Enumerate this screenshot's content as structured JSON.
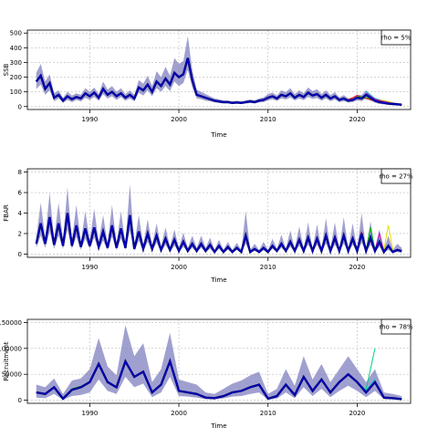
{
  "chart_data": [
    {
      "type": "line",
      "ylabel": "SSB",
      "xlabel": "Time",
      "xlim": [
        1983,
        2026
      ],
      "ylim": [
        0,
        500
      ],
      "x_ticks": [
        1990,
        2000,
        2010,
        2020
      ],
      "x_tick_labels": [
        "1990",
        "2000",
        "2010",
        "2020"
      ],
      "y_ticks": [
        0,
        100,
        200,
        300,
        400,
        500
      ],
      "y_tick_labels": [
        "0",
        "100",
        "200",
        "300",
        "400",
        "500"
      ],
      "grid": true,
      "legend": {
        "text": "rho = 5%",
        "placement": "top-right"
      },
      "band_color": "#8080c0",
      "line_color": "#0000cc",
      "est": {
        "x": [
          1984,
          1984.5,
          1985,
          1985.5,
          1986,
          1986.5,
          1987,
          1987.5,
          1988,
          1988.5,
          1989,
          1989.5,
          1990,
          1990.5,
          1991,
          1991.5,
          1992,
          1992.5,
          1993,
          1993.5,
          1994,
          1994.5,
          1995,
          1995.5,
          1996,
          1996.5,
          1997,
          1997.5,
          1998,
          1998.5,
          1999,
          1999.5,
          2000,
          2000.5,
          2001,
          2001.5,
          2002,
          2002.5,
          2003,
          2003.5,
          2004,
          2004.5,
          2005,
          2005.5,
          2006,
          2006.5,
          2007,
          2007.5,
          2008,
          2008.5,
          2009,
          2009.5,
          2010,
          2010.5,
          2011,
          2011.5,
          2012,
          2012.5,
          2013,
          2013.5,
          2014,
          2014.5,
          2015,
          2015.5,
          2016,
          2016.5,
          2017,
          2017.5,
          2018,
          2018.5,
          2019,
          2019.5,
          2020,
          2020.5,
          2021,
          2021.5,
          2022,
          2022.5,
          2023,
          2023.5,
          2024,
          2024.5,
          2025
        ],
        "y": [
          170,
          210,
          120,
          160,
          60,
          80,
          40,
          70,
          50,
          65,
          55,
          90,
          70,
          95,
          60,
          120,
          80,
          100,
          70,
          90,
          60,
          80,
          55,
          130,
          110,
          150,
          100,
          170,
          140,
          190,
          150,
          230,
          200,
          220,
          330,
          180,
          80,
          70,
          60,
          50,
          40,
          35,
          30,
          30,
          25,
          28,
          25,
          30,
          35,
          30,
          40,
          45,
          60,
          70,
          55,
          80,
          70,
          90,
          60,
          80,
          65,
          95,
          75,
          85,
          60,
          80,
          55,
          70,
          45,
          55,
          40,
          45,
          60,
          55,
          80,
          60,
          40,
          30,
          25,
          20,
          18,
          15,
          12
        ],
        "lo": [
          120,
          150,
          80,
          110,
          35,
          55,
          25,
          45,
          30,
          45,
          35,
          60,
          45,
          65,
          40,
          85,
          55,
          70,
          45,
          65,
          40,
          55,
          35,
          95,
          75,
          110,
          70,
          125,
          100,
          140,
          105,
          170,
          140,
          160,
          250,
          130,
          55,
          50,
          40,
          35,
          28,
          24,
          20,
          20,
          17,
          19,
          17,
          20,
          24,
          20,
          28,
          30,
          42,
          50,
          38,
          55,
          48,
          62,
          42,
          55,
          44,
          66,
          52,
          58,
          40,
          55,
          37,
          48,
          30,
          37,
          27,
          30,
          42,
          37,
          55,
          40,
          26,
          18,
          15,
          11,
          9,
          7,
          5
        ],
        "hi": [
          230,
          290,
          170,
          220,
          90,
          110,
          60,
          100,
          75,
          90,
          80,
          125,
          100,
          130,
          85,
          170,
          115,
          140,
          100,
          125,
          85,
          110,
          80,
          180,
          155,
          210,
          140,
          240,
          200,
          270,
          210,
          330,
          290,
          310,
          480,
          250,
          115,
          100,
          85,
          70,
          55,
          50,
          42,
          42,
          35,
          40,
          35,
          42,
          48,
          42,
          55,
          62,
          85,
          95,
          75,
          110,
          98,
          125,
          85,
          110,
          90,
          130,
          105,
          118,
          85,
          110,
          78,
          98,
          62,
          78,
          56,
          62,
          82,
          78,
          110,
          85,
          58,
          44,
          37,
          31,
          28,
          25,
          21
        ]
      },
      "forecasts": [
        {
          "name": "red",
          "color": "#ff0000",
          "x": [
            2019,
            2020,
            2021,
            2022,
            2023,
            2024
          ],
          "y": [
            45,
            75,
            55,
            40,
            28,
            20
          ]
        },
        {
          "name": "green",
          "color": "#00bb00",
          "x": [
            2020,
            2021,
            2022,
            2023,
            2024
          ],
          "y": [
            70,
            60,
            45,
            35,
            22
          ]
        },
        {
          "name": "cyan",
          "color": "#00cccc",
          "x": [
            2021,
            2022,
            2023,
            2024
          ],
          "y": [
            100,
            55,
            38,
            24
          ]
        },
        {
          "name": "yellow",
          "color": "#e0e000",
          "x": [
            2022,
            2023,
            2024
          ],
          "y": [
            45,
            42,
            26
          ]
        },
        {
          "name": "magenta",
          "color": "#cc00cc",
          "x": [
            2021,
            2022,
            2023,
            2024
          ],
          "y": [
            90,
            50,
            34,
            22
          ]
        }
      ]
    },
    {
      "type": "line",
      "ylabel": "FBAR",
      "xlabel": "Time",
      "xlim": [
        1983,
        2026
      ],
      "ylim": [
        0,
        8
      ],
      "x_ticks": [
        1990,
        2000,
        2010,
        2020
      ],
      "x_tick_labels": [
        "1990",
        "2000",
        "2010",
        "2020"
      ],
      "y_ticks": [
        0,
        2,
        4,
        6,
        8
      ],
      "y_tick_labels": [
        "0",
        "2",
        "4",
        "6",
        "8"
      ],
      "grid": true,
      "legend": {
        "text": "rho = 27%",
        "placement": "top-right"
      },
      "band_color": "#8080c0",
      "line_color": "#0000cc",
      "est": {
        "x": [
          1984,
          1984.5,
          1985,
          1985.5,
          1986,
          1986.5,
          1987,
          1987.5,
          1988,
          1988.5,
          1989,
          1989.5,
          1990,
          1990.5,
          1991,
          1991.5,
          1992,
          1992.5,
          1993,
          1993.5,
          1994,
          1994.5,
          1995,
          1995.5,
          1996,
          1996.5,
          1997,
          1997.5,
          1998,
          1998.5,
          1999,
          1999.5,
          2000,
          2000.5,
          2001,
          2001.5,
          2002,
          2002.5,
          2003,
          2003.5,
          2004,
          2004.5,
          2005,
          2005.5,
          2006,
          2006.5,
          2007,
          2007.5,
          2008,
          2008.5,
          2009,
          2009.5,
          2010,
          2010.5,
          2011,
          2011.5,
          2012,
          2012.5,
          2013,
          2013.5,
          2014,
          2014.5,
          2015,
          2015.5,
          2016,
          2016.5,
          2017,
          2017.5,
          2018,
          2018.5,
          2019,
          2019.5,
          2020,
          2020.5,
          2021,
          2021.5,
          2022,
          2022.5,
          2023,
          2023.5,
          2024,
          2024.5,
          2025
        ],
        "y": [
          1.0,
          3.0,
          1.0,
          3.6,
          0.9,
          3.0,
          0.8,
          4.0,
          0.8,
          2.8,
          0.7,
          2.5,
          0.8,
          2.6,
          0.7,
          2.2,
          0.6,
          2.8,
          0.6,
          2.5,
          0.6,
          3.8,
          0.5,
          2.2,
          0.5,
          2.0,
          0.5,
          1.8,
          0.4,
          1.5,
          0.4,
          1.4,
          0.3,
          1.2,
          0.3,
          1.0,
          0.3,
          1.0,
          0.3,
          0.9,
          0.2,
          0.8,
          0.2,
          0.7,
          0.2,
          0.6,
          0.2,
          1.8,
          0.2,
          0.5,
          0.2,
          0.6,
          0.2,
          0.8,
          0.3,
          1.0,
          0.3,
          1.2,
          0.3,
          1.4,
          0.3,
          1.6,
          0.3,
          1.5,
          0.3,
          1.8,
          0.3,
          1.6,
          0.3,
          1.8,
          0.3,
          1.5,
          0.3,
          2.0,
          0.3,
          1.6,
          0.3,
          1.2,
          0.2,
          0.8,
          0.2,
          0.4,
          0.3
        ],
        "lo": [
          0.6,
          1.8,
          0.6,
          2.2,
          0.5,
          1.8,
          0.5,
          2.4,
          0.5,
          1.7,
          0.4,
          1.5,
          0.5,
          1.6,
          0.4,
          1.3,
          0.4,
          1.7,
          0.4,
          1.5,
          0.4,
          2.3,
          0.3,
          1.3,
          0.3,
          1.2,
          0.3,
          1.1,
          0.2,
          0.9,
          0.2,
          0.8,
          0.2,
          0.7,
          0.2,
          0.6,
          0.2,
          0.6,
          0.2,
          0.5,
          0.1,
          0.5,
          0.1,
          0.4,
          0.1,
          0.4,
          0.1,
          1.0,
          0.1,
          0.3,
          0.1,
          0.35,
          0.1,
          0.5,
          0.2,
          0.6,
          0.2,
          0.7,
          0.2,
          0.8,
          0.2,
          0.9,
          0.2,
          0.9,
          0.2,
          1.0,
          0.2,
          0.9,
          0.2,
          1.0,
          0.2,
          0.9,
          0.2,
          1.1,
          0.2,
          0.9,
          0.2,
          0.7,
          0.1,
          0.4,
          0.1,
          0.2,
          0.1
        ],
        "hi": [
          1.6,
          5.0,
          1.6,
          6.0,
          1.5,
          5.0,
          1.4,
          6.5,
          1.4,
          4.8,
          1.2,
          4.2,
          1.3,
          4.4,
          1.2,
          3.8,
          1.0,
          4.8,
          1.0,
          4.2,
          1.0,
          6.8,
          0.9,
          3.8,
          0.9,
          3.4,
          0.9,
          3.0,
          0.7,
          2.6,
          0.7,
          2.4,
          0.6,
          2.1,
          0.6,
          1.8,
          0.6,
          1.8,
          0.6,
          1.6,
          0.4,
          1.4,
          0.4,
          1.2,
          0.4,
          1.1,
          0.4,
          4.2,
          0.4,
          1.0,
          0.4,
          1.2,
          0.4,
          1.5,
          0.5,
          1.9,
          0.5,
          2.3,
          0.5,
          2.7,
          0.5,
          3.1,
          0.5,
          2.9,
          0.5,
          3.5,
          0.5,
          3.1,
          0.5,
          3.6,
          0.5,
          3.0,
          0.5,
          4.0,
          0.5,
          3.2,
          0.5,
          2.4,
          0.4,
          1.8,
          0.4,
          1.0,
          0.6
        ]
      },
      "forecasts": [
        {
          "name": "red",
          "color": "#ff0000",
          "x": [
            2020,
            2020.5,
            2021,
            2021.5,
            2022
          ],
          "y": [
            0.4,
            2.2,
            0.4,
            1.8,
            0.4
          ]
        },
        {
          "name": "green",
          "color": "#00bb00",
          "x": [
            2021,
            2021.5,
            2022,
            2022.5,
            2023
          ],
          "y": [
            0.4,
            2.6,
            0.4,
            1.4,
            0.3
          ]
        },
        {
          "name": "cyan",
          "color": "#00cccc",
          "x": [
            2021.5,
            2022,
            2022.5,
            2023
          ],
          "y": [
            2.0,
            0.4,
            1.6,
            0.3
          ]
        },
        {
          "name": "yellow",
          "color": "#e0e000",
          "x": [
            2022.5,
            2023,
            2023.5,
            2024
          ],
          "y": [
            1.8,
            0.4,
            2.8,
            0.4
          ]
        },
        {
          "name": "magenta",
          "color": "#cc00cc",
          "x": [
            2022,
            2022.5,
            2023
          ],
          "y": [
            0.4,
            2.0,
            0.3
          ]
        }
      ]
    },
    {
      "type": "line",
      "ylabel": "Recruitment",
      "xlabel": "Time",
      "xlim": [
        1983,
        2026
      ],
      "ylim": [
        0,
        150000
      ],
      "x_ticks": [
        1990,
        2000,
        2010,
        2020
      ],
      "x_tick_labels": [
        "1990",
        "2000",
        "2010",
        "2020"
      ],
      "y_ticks": [
        0,
        50000,
        100000,
        150000
      ],
      "y_tick_labels": [
        "0",
        "50000",
        "100000",
        "150000"
      ],
      "grid": true,
      "legend": {
        "text": "rho = 78%",
        "placement": "top-right"
      },
      "band_color": "#8080c0",
      "line_color": "#0000cc",
      "est": {
        "x": [
          1984,
          1985,
          1986,
          1987,
          1988,
          1989,
          1990,
          1991,
          1992,
          1993,
          1994,
          1995,
          1996,
          1997,
          1998,
          1999,
          2000,
          2001,
          2002,
          2003,
          2004,
          2005,
          2006,
          2007,
          2008,
          2009,
          2010,
          2011,
          2012,
          2013,
          2014,
          2015,
          2016,
          2017,
          2018,
          2019,
          2020,
          2021,
          2022,
          2023,
          2024,
          2025
        ],
        "y": [
          15000,
          12000,
          25000,
          3000,
          20000,
          25000,
          35000,
          70000,
          35000,
          25000,
          75000,
          45000,
          55000,
          15000,
          30000,
          75000,
          18000,
          15000,
          12000,
          5000,
          4000,
          8000,
          15000,
          18000,
          25000,
          30000,
          3000,
          8000,
          30000,
          10000,
          45000,
          18000,
          40000,
          15000,
          35000,
          50000,
          35000,
          15000,
          35000,
          5000,
          4000,
          2000
        ],
        "lo": [
          5000,
          4000,
          12000,
          500,
          8000,
          10000,
          15000,
          40000,
          18000,
          12000,
          45000,
          25000,
          32000,
          6000,
          15000,
          45000,
          8000,
          7000,
          5000,
          2000,
          1500,
          3500,
          7000,
          8000,
          12000,
          15000,
          1000,
          3000,
          15000,
          4000,
          25000,
          8000,
          22000,
          6000,
          18000,
          28000,
          18000,
          6000,
          18000,
          2000,
          1500,
          500
        ],
        "hi": [
          30000,
          25000,
          42000,
          12000,
          38000,
          42000,
          60000,
          120000,
          65000,
          48000,
          145000,
          85000,
          110000,
          35000,
          60000,
          130000,
          40000,
          35000,
          30000,
          15000,
          12000,
          22000,
          32000,
          38000,
          48000,
          55000,
          12000,
          22000,
          60000,
          28000,
          85000,
          40000,
          70000,
          35000,
          60000,
          85000,
          60000,
          35000,
          60000,
          15000,
          12000,
          8000
        ]
      },
      "forecasts": [
        {
          "name": "red",
          "color": "#ff0000",
          "x": [
            1990,
            1991,
            1992
          ],
          "y": [
            35000,
            72000,
            36000
          ]
        },
        {
          "name": "green",
          "color": "#00bb00",
          "x": [
            1987,
            1988,
            1989
          ],
          "y": [
            3000,
            22000,
            27000
          ]
        },
        {
          "name": "seagreen",
          "color": "#00cc88",
          "x": [
            2020,
            2021,
            2022
          ],
          "y": [
            35000,
            20000,
            100000
          ]
        },
        {
          "name": "cyan",
          "color": "#00cccc",
          "x": [
            2020,
            2021,
            2022
          ],
          "y": [
            35000,
            18000,
            42000
          ]
        },
        {
          "name": "magenta",
          "color": "#cc00cc",
          "x": [
            2021,
            2022,
            2023
          ],
          "y": [
            15000,
            35000,
            6000
          ]
        }
      ]
    }
  ]
}
